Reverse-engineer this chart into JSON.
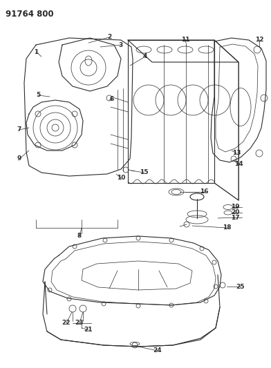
{
  "title": "91764 800",
  "bg_color": "#ffffff",
  "line_color": "#2a2a2a",
  "fig_width": 3.92,
  "fig_height": 5.33,
  "dpi": 100
}
